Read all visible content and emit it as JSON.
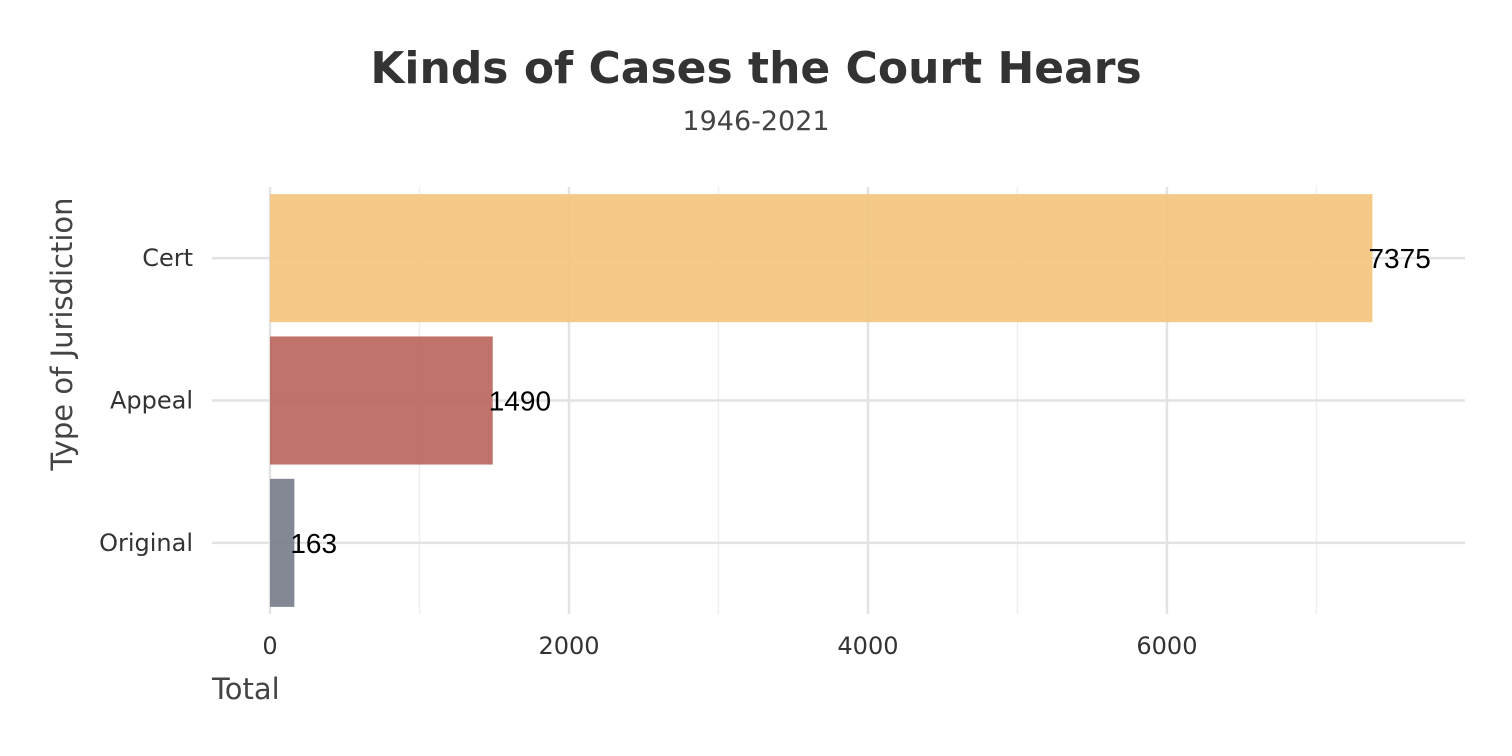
{
  "chart_data": {
    "type": "bar",
    "orientation": "horizontal",
    "title": "Kinds of Cases the Court Hears",
    "subtitle": "1946-2021",
    "xlabel": "Total",
    "ylabel": "Type of Jurisdiction",
    "categories": [
      "Cert",
      "Appeal",
      "Original"
    ],
    "values": [
      7375,
      1490,
      163
    ],
    "data_labels": [
      "7375",
      "1490",
      "163"
    ],
    "colors": [
      "#F4C47B",
      "#B8645A",
      "#777B88"
    ],
    "xlim": [
      0,
      7975
    ],
    "x_ticks": [
      0,
      2000,
      4000,
      6000
    ],
    "x_tick_labels": [
      "0",
      "2000",
      "4000",
      "6000"
    ],
    "grid": true,
    "legend": "none"
  }
}
